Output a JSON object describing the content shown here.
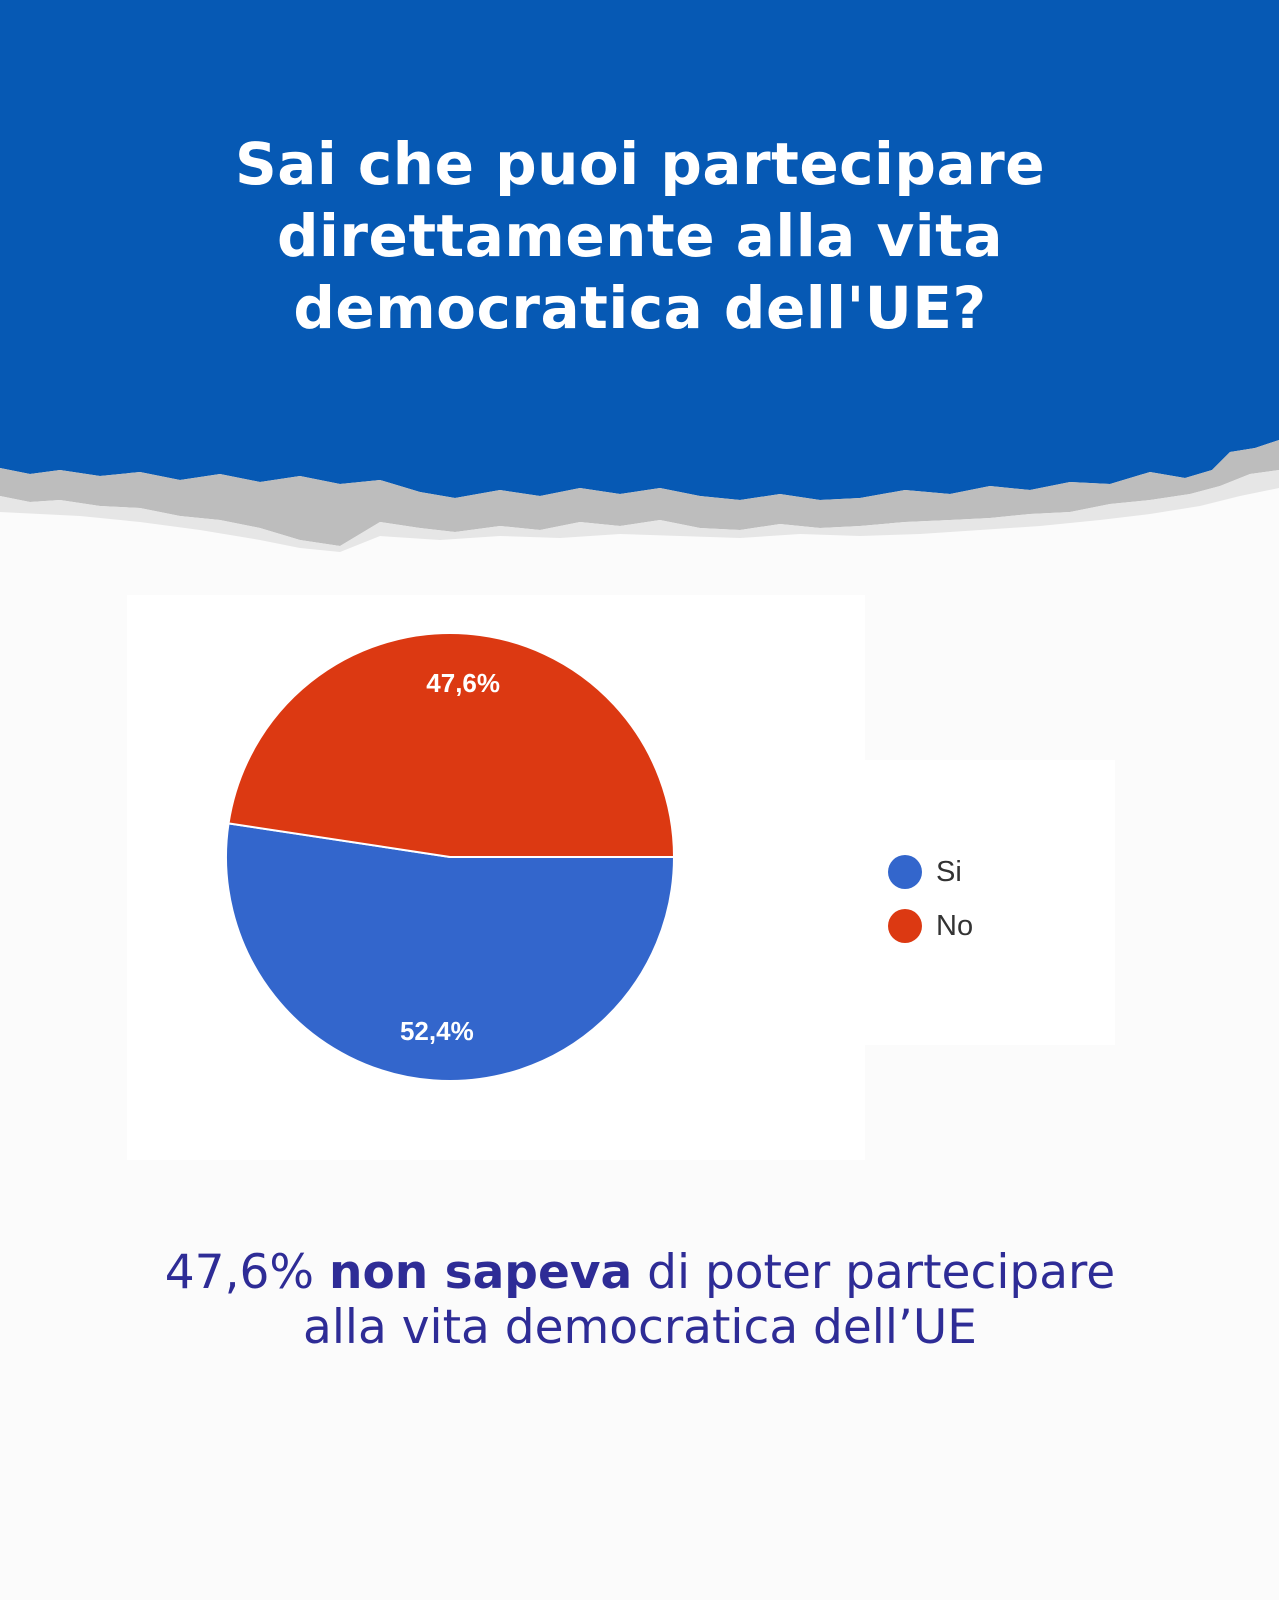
{
  "header": {
    "title": "Sai che puoi partecipare direttamente alla vita democratica dell'UE?",
    "background_color": "#0659b4"
  },
  "chart_data": {
    "type": "pie",
    "title": "",
    "categories": [
      "Si",
      "No"
    ],
    "values": [
      52.4,
      47.6
    ],
    "value_labels": [
      "52,4%",
      "47,6%"
    ],
    "colors": [
      "#3366cc",
      "#dc3912"
    ],
    "legend_position": "right"
  },
  "caption": {
    "highlight": "47,6%",
    "bold": "non sapeva",
    "rest": "di poter partecipare alla vita democratica dell’UE",
    "color": "#2e2c96"
  }
}
